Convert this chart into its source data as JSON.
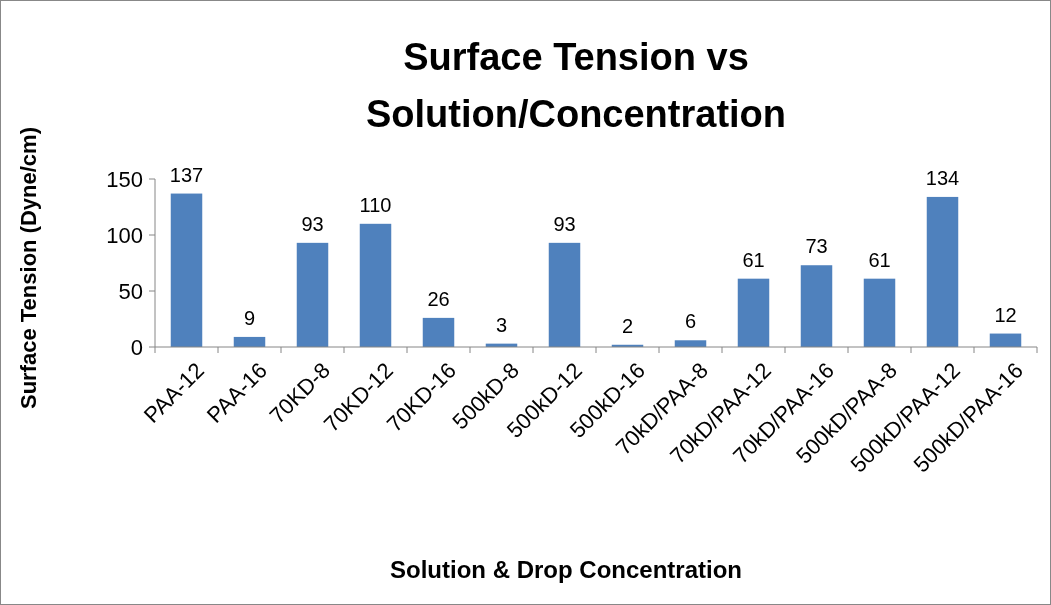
{
  "chart_data": {
    "type": "bar",
    "title": "Surface Tension vs Solution/Concentration",
    "xlabel": "Solution & Drop Concentration",
    "ylabel": "Surface Tension (Dyne/cm)",
    "categories": [
      "PAA-12",
      "PAA-16",
      "70KD-8",
      "70KD-12",
      "70KD-16",
      "500kD-8",
      "500kD-12",
      "500kD-16",
      "70kD/PAA-8",
      "70kD/PAA-12",
      "70kD/PAA-16",
      "500kD/PAA-8",
      "500kD/PAA-12",
      "500kD/PAA-16"
    ],
    "values": [
      137,
      9,
      93,
      110,
      26,
      3,
      93,
      2,
      6,
      61,
      73,
      61,
      134,
      12
    ],
    "color": "#4f81bd",
    "ylim": [
      0,
      150
    ],
    "yticks": [
      0,
      50,
      100,
      150
    ],
    "grid": false,
    "data_labels": true
  }
}
